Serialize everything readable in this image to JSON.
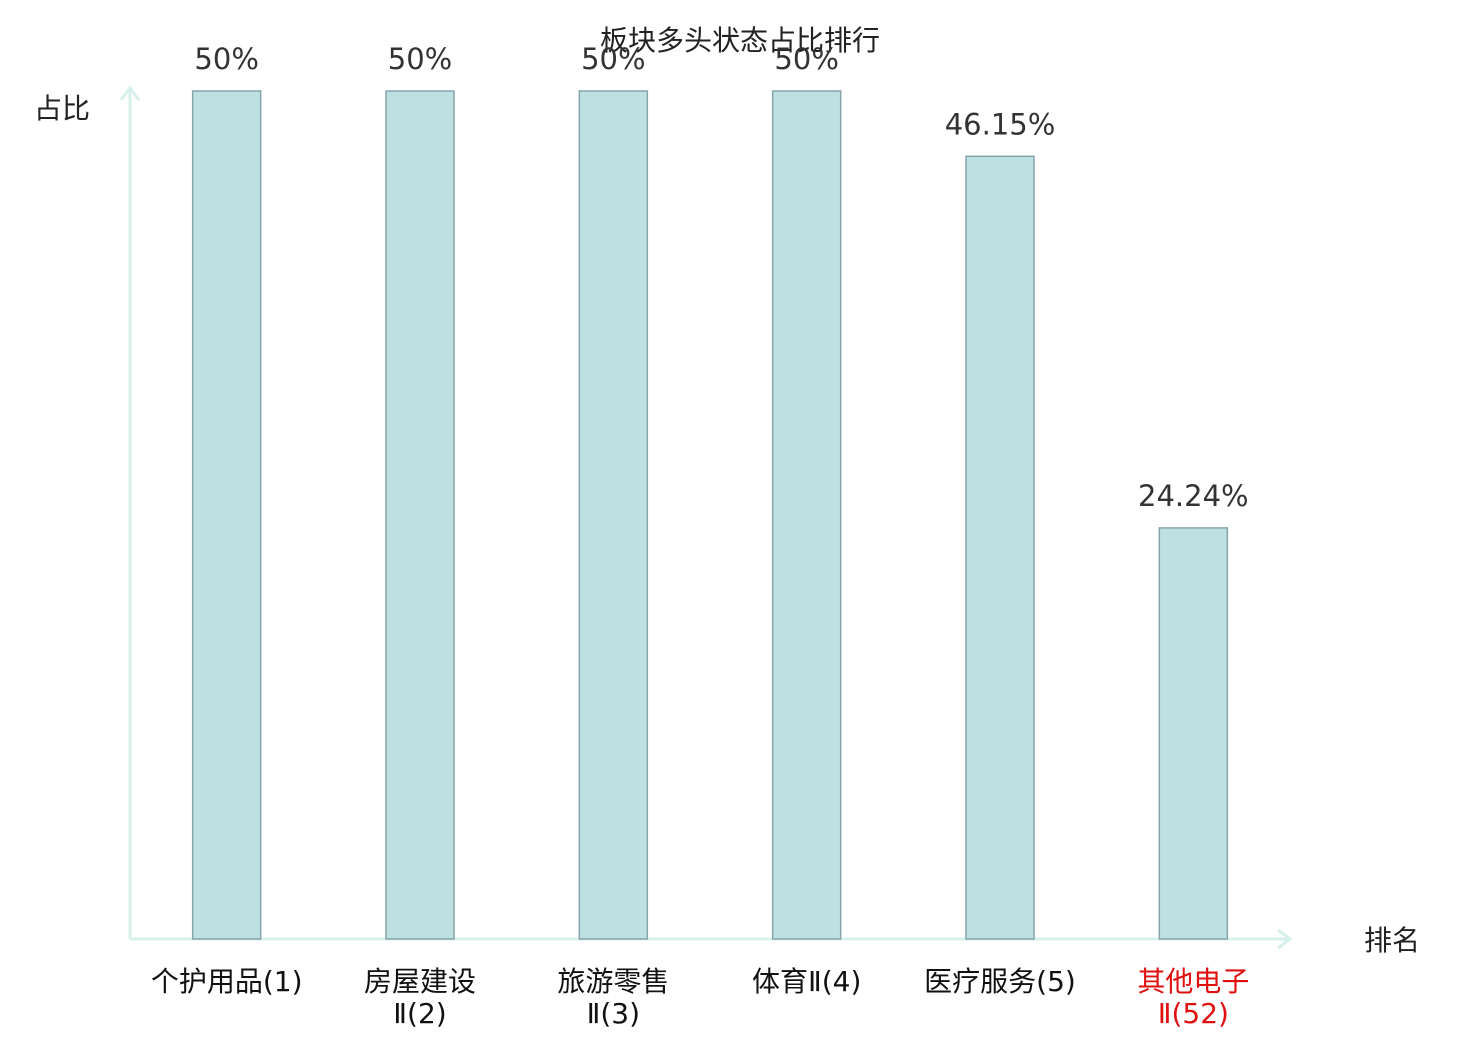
{
  "chart_data": {
    "type": "bar",
    "title": "板块多头状态占比排行",
    "y_label": "占比",
    "x_label": "排名",
    "categories": [
      "个护用品(1)",
      "房屋建设\nⅡ(2)",
      "旅游零售\nⅡ(3)",
      "体育Ⅱ(4)",
      "医疗服务(5)",
      "其他电子\nⅡ(52)"
    ],
    "category_colors": [
      "#111111",
      "#111111",
      "#111111",
      "#111111",
      "#111111",
      "#e01010"
    ],
    "values": [
      50,
      50,
      50,
      50,
      46.15,
      24.24
    ],
    "value_labels": [
      "50%",
      "50%",
      "50%",
      "50%",
      "46.15%",
      "24.24%"
    ],
    "color": "#bde0e3",
    "edge_color": "#86a5aa",
    "axis_color": "#d6f0ec",
    "ylim": [
      0,
      50
    ]
  }
}
